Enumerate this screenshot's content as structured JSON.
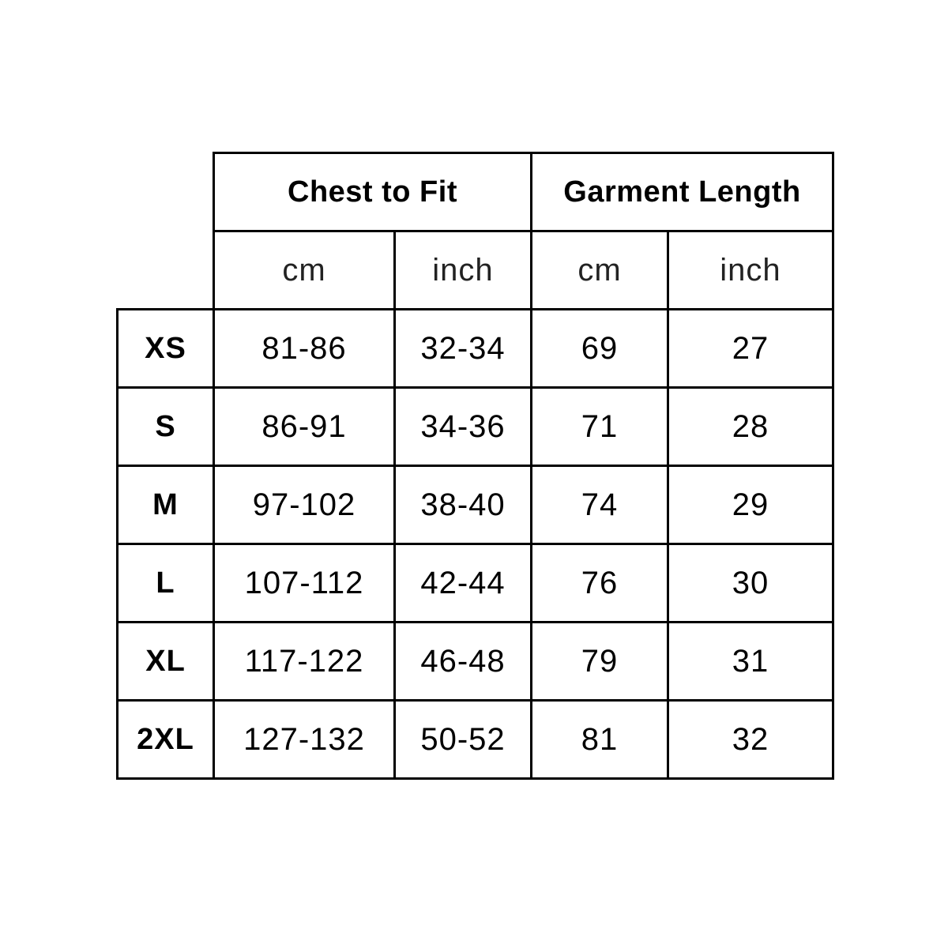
{
  "headers": {
    "groups": [
      "Chest to Fit",
      "Garment Length"
    ],
    "units": [
      "cm",
      "inch",
      "cm",
      "inch"
    ]
  },
  "rows": [
    {
      "size": "XS",
      "chest_cm": "81-86",
      "chest_inch": "32-34",
      "length_cm": "69",
      "length_inch": "27"
    },
    {
      "size": "S",
      "chest_cm": "86-91",
      "chest_inch": "34-36",
      "length_cm": "71",
      "length_inch": "28"
    },
    {
      "size": "M",
      "chest_cm": "97-102",
      "chest_inch": "38-40",
      "length_cm": "74",
      "length_inch": "29"
    },
    {
      "size": "L",
      "chest_cm": "107-112",
      "chest_inch": "42-44",
      "length_cm": "76",
      "length_inch": "30"
    },
    {
      "size": "XL",
      "chest_cm": "117-122",
      "chest_inch": "46-48",
      "length_cm": "79",
      "length_inch": "31"
    },
    {
      "size": "2XL",
      "chest_cm": "127-132",
      "chest_inch": "50-52",
      "length_cm": "81",
      "length_inch": "32"
    }
  ]
}
